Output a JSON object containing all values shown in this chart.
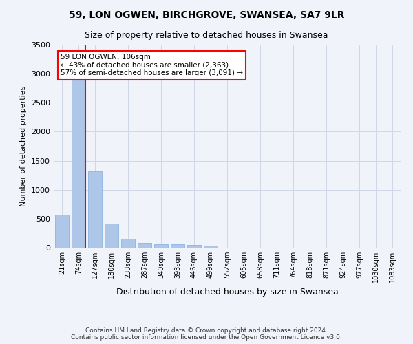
{
  "title": "59, LON OGWEN, BIRCHGROVE, SWANSEA, SA7 9LR",
  "subtitle": "Size of property relative to detached houses in Swansea",
  "xlabel": "Distribution of detached houses by size in Swansea",
  "ylabel": "Number of detached properties",
  "footer_line1": "Contains HM Land Registry data © Crown copyright and database right 2024.",
  "footer_line2": "Contains public sector information licensed under the Open Government Licence v3.0.",
  "categories": [
    "21sqm",
    "74sqm",
    "127sqm",
    "180sqm",
    "233sqm",
    "287sqm",
    "340sqm",
    "393sqm",
    "446sqm",
    "499sqm",
    "552sqm",
    "605sqm",
    "658sqm",
    "711sqm",
    "764sqm",
    "818sqm",
    "871sqm",
    "924sqm",
    "977sqm",
    "1030sqm",
    "1083sqm"
  ],
  "values": [
    575,
    2900,
    1320,
    415,
    155,
    80,
    60,
    55,
    45,
    40,
    0,
    0,
    0,
    0,
    0,
    0,
    0,
    0,
    0,
    0,
    0
  ],
  "bar_color": "#aec6e8",
  "bar_edge_color": "#7aade0",
  "grid_color": "#d0d8e8",
  "background_color": "#f0f4fa",
  "vline_color": "red",
  "vline_pos": 1.42,
  "annotation_text": "59 LON OGWEN: 106sqm\n← 43% of detached houses are smaller (2,363)\n57% of semi-detached houses are larger (3,091) →",
  "annotation_box_color": "white",
  "annotation_box_edge": "red",
  "ylim": [
    0,
    3500
  ],
  "yticks": [
    0,
    500,
    1000,
    1500,
    2000,
    2500,
    3000,
    3500
  ]
}
